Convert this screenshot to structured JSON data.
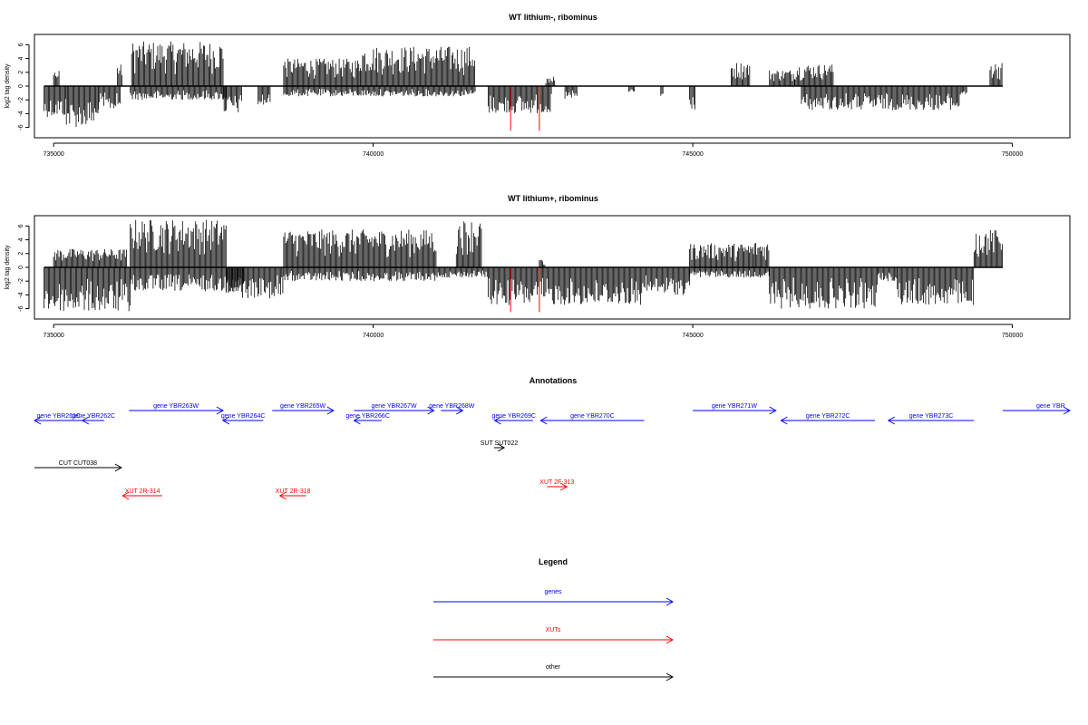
{
  "colors": {
    "axis": "#000000",
    "bar": "#000000",
    "highlight": "#ff0000",
    "gene": "#0000ff",
    "xut": "#ff0000",
    "other": "#000000"
  },
  "chart_data": [
    {
      "type": "bar",
      "title": "WT lithium-, ribominus",
      "ylabel": "log2 tag density",
      "xlim": [
        734700,
        750900
      ],
      "ylim": [
        -7.5,
        7.5
      ],
      "x_ticks": [
        735000,
        740000,
        745000,
        750000
      ],
      "y_ticks": [
        -6,
        -4,
        -2,
        0,
        2,
        4,
        6
      ],
      "grid": false,
      "segments": [
        {
          "start": 734850,
          "end": 735200,
          "min": -4.5,
          "max": 0
        },
        {
          "start": 735000,
          "end": 735100,
          "min": 0,
          "max": 2.3
        },
        {
          "start": 735200,
          "end": 735700,
          "min": -6,
          "max": 0
        },
        {
          "start": 735700,
          "end": 736050,
          "min": -3.5,
          "max": 0
        },
        {
          "start": 736000,
          "end": 736080,
          "min": 0,
          "max": 3.2
        },
        {
          "start": 736220,
          "end": 737650,
          "min": 0,
          "max": 6.5
        },
        {
          "start": 736200,
          "end": 737700,
          "min": -2,
          "max": 0
        },
        {
          "start": 737650,
          "end": 737950,
          "min": -4,
          "max": 0
        },
        {
          "start": 738200,
          "end": 738400,
          "min": -3,
          "max": 0
        },
        {
          "start": 738600,
          "end": 739800,
          "min": 0,
          "max": 4
        },
        {
          "start": 739800,
          "end": 741600,
          "min": 0,
          "max": 5.8
        },
        {
          "start": 738600,
          "end": 741600,
          "min": -1.5,
          "max": 0
        },
        {
          "start": 741800,
          "end": 742800,
          "min": -4,
          "max": 0
        },
        {
          "start": 742700,
          "end": 742850,
          "min": 0,
          "max": 1.5
        },
        {
          "start": 743000,
          "end": 743200,
          "min": -2,
          "max": 0
        },
        {
          "start": 744000,
          "end": 744100,
          "min": -1,
          "max": 0
        },
        {
          "start": 744500,
          "end": 744550,
          "min": -2,
          "max": 0
        },
        {
          "start": 744950,
          "end": 745050,
          "min": -3.5,
          "max": 0
        },
        {
          "start": 745600,
          "end": 745900,
          "min": 0,
          "max": 3.5
        },
        {
          "start": 746200,
          "end": 746600,
          "min": 0,
          "max": 2.4
        },
        {
          "start": 746600,
          "end": 747200,
          "min": 0,
          "max": 3.2
        },
        {
          "start": 746700,
          "end": 749200,
          "min": -3.5,
          "max": 0
        },
        {
          "start": 749200,
          "end": 749300,
          "min": -1.2,
          "max": 0
        },
        {
          "start": 749650,
          "end": 749850,
          "min": 0,
          "max": 3.5
        }
      ],
      "highlight_bars": [
        {
          "x": 742150,
          "value": -6.5
        },
        {
          "x": 742600,
          "value": -6.5
        }
      ]
    },
    {
      "type": "bar",
      "title": "WT lithium+, ribominus",
      "ylabel": "log2 tag density",
      "xlim": [
        734700,
        750900
      ],
      "ylim": [
        -7.5,
        7.5
      ],
      "x_ticks": [
        735000,
        740000,
        745000,
        750000
      ],
      "y_ticks": [
        -6,
        -4,
        -2,
        0,
        2,
        4,
        6
      ],
      "grid": false,
      "segments": [
        {
          "start": 734850,
          "end": 736200,
          "min": -6.5,
          "max": 0
        },
        {
          "start": 735000,
          "end": 736150,
          "min": 0,
          "max": 2.7
        },
        {
          "start": 736200,
          "end": 737700,
          "min": 0,
          "max": 7
        },
        {
          "start": 736200,
          "end": 738000,
          "min": -3.5,
          "max": 0
        },
        {
          "start": 737700,
          "end": 738600,
          "min": -4.5,
          "max": 0
        },
        {
          "start": 738600,
          "end": 741000,
          "min": 0,
          "max": 5.5
        },
        {
          "start": 738600,
          "end": 741000,
          "min": -2,
          "max": 0
        },
        {
          "start": 741300,
          "end": 741700,
          "min": 0,
          "max": 7
        },
        {
          "start": 741000,
          "end": 741800,
          "min": -1.5,
          "max": 0
        },
        {
          "start": 741800,
          "end": 744200,
          "min": -5.5,
          "max": 0
        },
        {
          "start": 742600,
          "end": 742700,
          "min": 0,
          "max": 1.2
        },
        {
          "start": 744200,
          "end": 744950,
          "min": -4,
          "max": 0
        },
        {
          "start": 744950,
          "end": 745950,
          "min": 0,
          "max": 3.5
        },
        {
          "start": 745950,
          "end": 746200,
          "min": 0,
          "max": 3.8
        },
        {
          "start": 744950,
          "end": 746200,
          "min": -1.5,
          "max": 0
        },
        {
          "start": 746200,
          "end": 747900,
          "min": -6,
          "max": 0
        },
        {
          "start": 747900,
          "end": 748200,
          "min": -2,
          "max": 0
        },
        {
          "start": 748200,
          "end": 749400,
          "min": -5.5,
          "max": 0
        },
        {
          "start": 749400,
          "end": 749850,
          "min": 0,
          "max": 5.5
        }
      ],
      "highlight_bars": [
        {
          "x": 742150,
          "value": -6.5
        },
        {
          "x": 742600,
          "value": -6.5
        }
      ]
    }
  ],
  "annotations": {
    "title": "Annotations",
    "genes": [
      {
        "label": "gene YBR261C",
        "start": 734700,
        "end": 735460,
        "direction": "left",
        "row": 1
      },
      {
        "label": "gene YBR262C",
        "start": 735450,
        "end": 735790,
        "direction": "left",
        "row": 1
      },
      {
        "label": "gene YBR263W",
        "start": 736180,
        "end": 737650,
        "direction": "right",
        "row": 0
      },
      {
        "label": "gene YBR264C",
        "start": 737650,
        "end": 738280,
        "direction": "left",
        "row": 1
      },
      {
        "label": "gene YBR265W",
        "start": 738420,
        "end": 739380,
        "direction": "right",
        "row": 0
      },
      {
        "label": "gene YBR266C",
        "start": 739700,
        "end": 740130,
        "direction": "left",
        "row": 1
      },
      {
        "label": "gene YBR267W",
        "start": 739700,
        "end": 740950,
        "direction": "right",
        "row": 0
      },
      {
        "label": "gene YBR268W",
        "start": 741060,
        "end": 741400,
        "direction": "right",
        "row": 0
      },
      {
        "label": "gene YBR269C",
        "start": 741900,
        "end": 742500,
        "direction": "left",
        "row": 1
      },
      {
        "label": "gene YBR270C",
        "start": 742620,
        "end": 744240,
        "direction": "left",
        "row": 1
      },
      {
        "label": "gene YBR271W",
        "start": 745000,
        "end": 746300,
        "direction": "right",
        "row": 0
      },
      {
        "label": "gene YBR272C",
        "start": 746380,
        "end": 747850,
        "direction": "left",
        "row": 1
      },
      {
        "label": "gene YBR273C",
        "start": 748060,
        "end": 749400,
        "direction": "left",
        "row": 1
      },
      {
        "label": "gene YBR",
        "start": 749850,
        "end": 750900,
        "direction": "right",
        "row": 0
      }
    ],
    "other": [
      {
        "label": "CUT CUT038",
        "start": 734700,
        "end": 736060,
        "direction": "right",
        "row": 0
      },
      {
        "label": "SUT SUT022",
        "start": 741890,
        "end": 742050,
        "direction": "right",
        "row": 0
      }
    ],
    "xuts": [
      {
        "label": "XUT 2R-314",
        "start": 736080,
        "end": 736700,
        "direction": "left",
        "row": 0
      },
      {
        "label": "XUT 2R-318",
        "start": 738540,
        "end": 738950,
        "direction": "left",
        "row": 0
      },
      {
        "label": "XUT 2F-313",
        "start": 742720,
        "end": 743030,
        "direction": "right",
        "row": 0
      }
    ]
  },
  "legend": {
    "title": "Legend",
    "items": [
      {
        "label": "genes",
        "color": "#0000ff"
      },
      {
        "label": "XUTs",
        "color": "#ff0000"
      },
      {
        "label": "other",
        "color": "#000000"
      }
    ]
  }
}
